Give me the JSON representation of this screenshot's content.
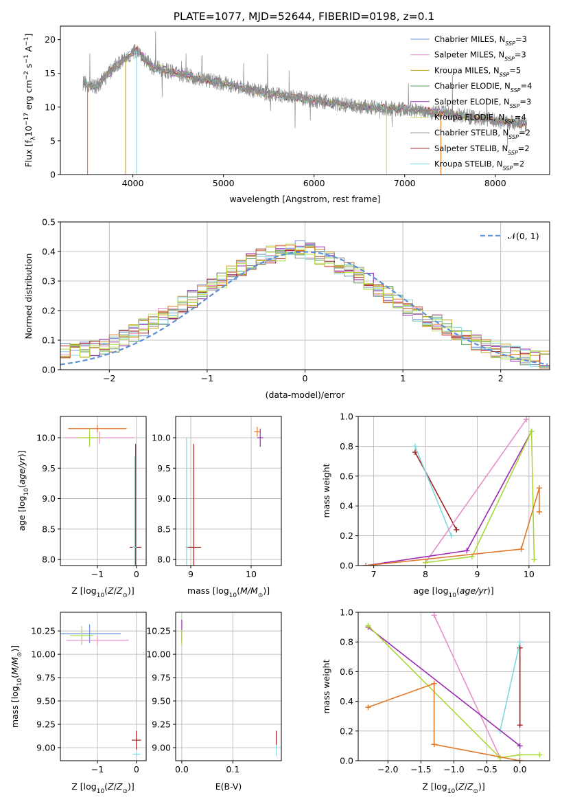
{
  "figure": {
    "title": "PLATE=1077, MJD=52644, FIBERID=0198, z=0.1"
  },
  "colors": {
    "Chabrier MILES": "#6a8fd6",
    "Salpeter MILES": "#e58fc8",
    "Kroupa MILES": "#c4a020",
    "Chabrier ELODIE": "#5a9a5a",
    "Salpeter ELODIE": "#9a28b0",
    "Kroupa ELODIE": "#c8e070",
    "Chabrier STELIB": "#8a8a8a",
    "Salpeter STELIB": "#a02020",
    "Kroupa STELIB": "#80d8dc",
    "orange": "#e07828",
    "green": "#a8d838",
    "normal": "#5b8fd6"
  },
  "chart_data": [
    {
      "id": "spectrum",
      "type": "line",
      "xlabel": "wavelength [Angstrom, rest frame]",
      "ylabel": "Flux [f",
      "ylim": [
        0,
        22
      ],
      "xlim": [
        3200,
        8600
      ],
      "xticks": [
        "4000",
        "5000",
        "6000",
        "7000",
        "8000"
      ],
      "yticks": [
        "0",
        "5",
        "10",
        "15",
        "20"
      ],
      "legend_position": "upper right",
      "series": [
        {
          "name": "Chabrier MILES",
          "nssp": "3"
        },
        {
          "name": "Salpeter MILES",
          "nssp": "3"
        },
        {
          "name": "Kroupa MILES",
          "nssp": "5"
        },
        {
          "name": "Chabrier ELODIE",
          "nssp": "4"
        },
        {
          "name": "Salpeter ELODIE",
          "nssp": "3"
        },
        {
          "name": "Kroupa ELODIE",
          "nssp": "4"
        },
        {
          "name": "Chabrier STELIB",
          "nssp": "2"
        },
        {
          "name": "Salpeter STELIB",
          "nssp": "2"
        },
        {
          "name": "Kroupa STELIB",
          "nssp": "2"
        }
      ],
      "data_envelope": {
        "x": [
          3450,
          3600,
          3800,
          3950,
          4050,
          4200,
          4500,
          5000,
          5500,
          6000,
          6500,
          7000,
          7500,
          8000,
          8350
        ],
        "y": [
          13.5,
          13.0,
          16.0,
          17.5,
          18.5,
          16.0,
          15.0,
          13.5,
          12.0,
          11.0,
          10.0,
          9.7,
          9.0,
          8.0,
          7.5
        ]
      }
    },
    {
      "id": "residuals",
      "type": "line",
      "xlabel": "(data-model)/error",
      "ylabel": "Normed distribution",
      "xlim": [
        -2.5,
        2.5
      ],
      "ylim": [
        0,
        0.5
      ],
      "xticks": [
        "−2",
        "−1",
        "0",
        "1",
        "2"
      ],
      "yticks": [
        "0.0",
        "0.1",
        "0.2",
        "0.3",
        "0.4",
        "0.5"
      ],
      "legend_label": "𝒩(0, 1)",
      "histogram_envelope": {
        "x": [
          -2.5,
          -2.0,
          -1.5,
          -1.0,
          -0.5,
          0.0,
          0.5,
          1.0,
          1.5,
          2.0,
          2.5
        ],
        "y": [
          0.06,
          0.08,
          0.17,
          0.27,
          0.38,
          0.41,
          0.33,
          0.22,
          0.13,
          0.06,
          0.03
        ]
      }
    },
    {
      "id": "age-vs-Z",
      "type": "scatter",
      "xlabel": "Z [log",
      "ylabel": "age  [log",
      "xticks": [
        "−1",
        "0"
      ],
      "yticks": [
        "8.0",
        "8.5",
        "9.0",
        "9.5",
        "10.0"
      ],
      "points": [
        {
          "x": -1.0,
          "y": 10.15,
          "xerr": 0.75,
          "yerr": 0.06
        },
        {
          "x": -0.95,
          "y": 10.0,
          "xerr": 0.9,
          "yerr": 0.1
        },
        {
          "x": -1.2,
          "y": 10.0,
          "xerr": 0.3,
          "yerr": 0.15
        },
        {
          "x": -0.02,
          "y": 8.2,
          "xerr": 0.15,
          "yerr": 1.7
        },
        {
          "x": -0.05,
          "y": 8.2,
          "xerr": 0.05,
          "yerr": 1.5
        }
      ]
    },
    {
      "id": "age-vs-mass",
      "type": "scatter",
      "xlabel": "mass [log",
      "ylabel": "",
      "xticks": [
        "9",
        "10"
      ],
      "yticks": [
        "8.0",
        "8.5",
        "9.0",
        "9.5",
        "10.0"
      ],
      "points": [
        {
          "x": 10.1,
          "y": 10.1,
          "xerr": 0.05,
          "yerr": 0.08
        },
        {
          "x": 10.15,
          "y": 10.0,
          "xerr": 0.05,
          "yerr": 0.15
        },
        {
          "x": 9.05,
          "y": 8.2,
          "xerr": 0.12,
          "yerr": 1.7
        },
        {
          "x": 8.93,
          "y": 8.2,
          "xerr": 0.02,
          "yerr": 1.8
        }
      ]
    },
    {
      "id": "massweight-vs-age",
      "type": "line",
      "xlabel": "age  [log",
      "ylabel": "mass weight",
      "xlim": [
        6.7,
        10.4
      ],
      "ylim": [
        0,
        1
      ],
      "xticks": [
        "7",
        "8",
        "9",
        "10"
      ],
      "yticks": [
        "0.0",
        "0.2",
        "0.4",
        "0.6",
        "0.8",
        "1.0"
      ],
      "series": [
        {
          "color": "Salpeter STELIB",
          "x": [
            7.8,
            8.6
          ],
          "y": [
            0.76,
            0.24
          ]
        },
        {
          "color": "Kroupa STELIB",
          "x": [
            7.8,
            8.5
          ],
          "y": [
            0.8,
            0.2
          ]
        },
        {
          "color": "Salpeter MILES",
          "x": [
            8.0,
            9.95
          ],
          "y": [
            0.02,
            0.98
          ]
        },
        {
          "color": "Salpeter ELODIE",
          "x": [
            6.85,
            8.8,
            10.05
          ],
          "y": [
            0.0,
            0.1,
            0.9
          ]
        },
        {
          "color": "green",
          "x": [
            8.0,
            8.9,
            10.05,
            10.1
          ],
          "y": [
            0.02,
            0.06,
            0.9,
            0.04
          ]
        },
        {
          "color": "orange",
          "x": [
            6.85,
            9.85,
            10.2,
            10.2
          ],
          "y": [
            0.0,
            0.11,
            0.52,
            0.36
          ]
        }
      ]
    },
    {
      "id": "mass-vs-Z",
      "type": "scatter",
      "xlabel": "Z [log",
      "ylabel": "mass [log",
      "xticks": [
        "−1",
        "0"
      ],
      "yticks": [
        "9.00",
        "9.25",
        "9.50",
        "9.75",
        "10.00",
        "10.25"
      ],
      "points": [
        {
          "x": -1.2,
          "y": 10.22,
          "xerr": 0.8,
          "yerr": 0.1
        },
        {
          "x": -1.0,
          "y": 10.15,
          "xerr": 0.8,
          "yerr": 0.05
        },
        {
          "x": -1.4,
          "y": 10.2,
          "xerr": 0.3,
          "yerr": 0.1
        },
        {
          "x": 0.0,
          "y": 9.08,
          "xerr": 0.12,
          "yerr": 0.1
        },
        {
          "x": 0.0,
          "y": 8.93,
          "xerr": 0.1,
          "yerr": 0.02
        }
      ]
    },
    {
      "id": "mass-vs-EBV",
      "type": "scatter",
      "xlabel": "E(B-V)",
      "ylabel": "",
      "xticks": [
        "0.0",
        "0.1"
      ],
      "yticks": [
        "9.00",
        "9.25",
        "9.50",
        "9.75",
        "10.00",
        "10.25"
      ],
      "points": [
        {
          "x": 0.0,
          "y": 10.25,
          "yerr": 0.12
        },
        {
          "x": 0.0,
          "y": 10.18,
          "yerr": 0.08
        },
        {
          "x": 0.185,
          "y": 9.1,
          "yerr": 0.08
        },
        {
          "x": 0.185,
          "y": 8.97,
          "yerr": 0.06
        }
      ]
    },
    {
      "id": "massweight-vs-Z",
      "type": "line",
      "xlabel": "Z [log",
      "ylabel": "mass weight",
      "xlim": [
        -2.45,
        0.45
      ],
      "ylim": [
        0,
        1
      ],
      "xticks": [
        "−2.0",
        "−1.5",
        "−1.0",
        "−0.5",
        "0.0"
      ],
      "yticks": [
        "0.0",
        "0.2",
        "0.4",
        "0.6",
        "0.8",
        "1.0"
      ],
      "series": [
        {
          "color": "Salpeter STELIB",
          "x": [
            0.0,
            0.0
          ],
          "y": [
            0.76,
            0.24
          ]
        },
        {
          "color": "Kroupa STELIB",
          "x": [
            0.0,
            -0.3
          ],
          "y": [
            0.8,
            0.2
          ]
        },
        {
          "color": "Salpeter MILES",
          "x": [
            -1.3,
            -0.3
          ],
          "y": [
            0.98,
            0.02
          ]
        },
        {
          "color": "Salpeter ELODIE",
          "x": [
            -2.3,
            0.0
          ],
          "y": [
            0.9,
            0.1
          ]
        },
        {
          "color": "green",
          "x": [
            -2.3,
            -0.3,
            0.0,
            0.3
          ],
          "y": [
            0.91,
            0.02,
            0.04,
            0.04
          ]
        },
        {
          "color": "orange",
          "x": [
            -2.3,
            -1.3,
            -1.3,
            0.0
          ],
          "y": [
            0.36,
            0.52,
            0.11,
            0.0
          ]
        }
      ]
    }
  ]
}
